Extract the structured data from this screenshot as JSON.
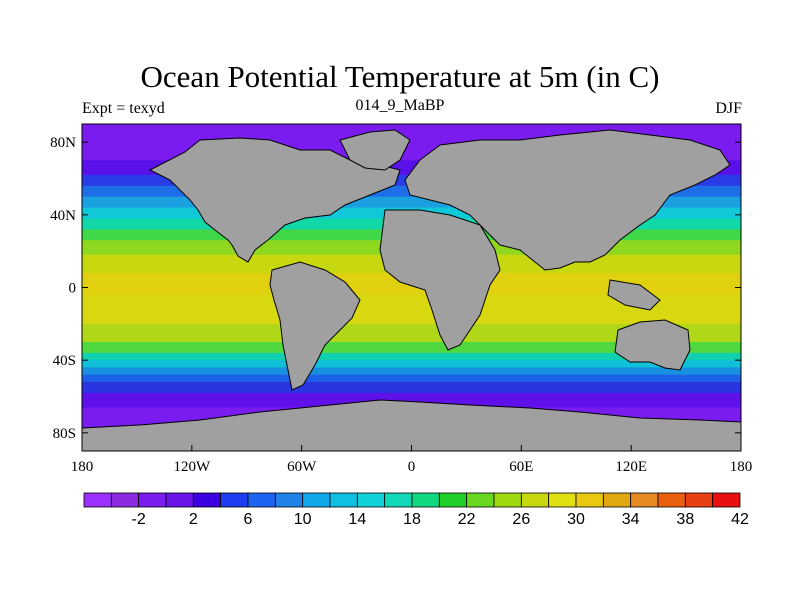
{
  "header": {
    "title": "Ocean Potential Temperature at 5m (in C)",
    "left": "Expt = texyd",
    "center": "014_9_MaBP",
    "right": "DJF"
  },
  "map": {
    "projection": "cylindrical-equidistant",
    "lon_range": [
      -180,
      180
    ],
    "lat_range": [
      -90,
      90
    ],
    "lat_ticks": [
      {
        "lat": 80,
        "label": "80N"
      },
      {
        "lat": 40,
        "label": "40N"
      },
      {
        "lat": 0,
        "label": "0"
      },
      {
        "lat": -40,
        "label": "40S"
      },
      {
        "lat": -80,
        "label": "80S"
      }
    ],
    "lon_ticks": [
      {
        "lon": -180,
        "label": "180"
      },
      {
        "lon": -120,
        "label": "120W"
      },
      {
        "lon": -60,
        "label": "60W"
      },
      {
        "lon": 0,
        "label": "0"
      },
      {
        "lon": 60,
        "label": "60E"
      },
      {
        "lon": 120,
        "label": "120E"
      },
      {
        "lon": 180,
        "label": "180"
      }
    ],
    "land_color": "#a0a0a0",
    "ocean_bands": [
      {
        "lat_to": 90,
        "color": "#7a1cf0"
      },
      {
        "lat_to": 70,
        "color": "#7a1cf0"
      },
      {
        "lat_to": 62,
        "color": "#5a10e8"
      },
      {
        "lat_to": 56,
        "color": "#2a3ce8"
      },
      {
        "lat_to": 50,
        "color": "#1e6ee8"
      },
      {
        "lat_to": 44,
        "color": "#1aa0e0"
      },
      {
        "lat_to": 38,
        "color": "#10c8d8"
      },
      {
        "lat_to": 32,
        "color": "#10d8a8"
      },
      {
        "lat_to": 26,
        "color": "#40d848"
      },
      {
        "lat_to": 18,
        "color": "#90d820"
      },
      {
        "lat_to": 8,
        "color": "#c8d810"
      },
      {
        "lat_to": -4,
        "color": "#e0d010"
      },
      {
        "lat_to": -20,
        "color": "#d8d810"
      },
      {
        "lat_to": -30,
        "color": "#b0d818"
      },
      {
        "lat_to": -36,
        "color": "#50d840"
      },
      {
        "lat_to": -40,
        "color": "#10d0b0"
      },
      {
        "lat_to": -44,
        "color": "#10c0d8"
      },
      {
        "lat_to": -48,
        "color": "#1890e0"
      },
      {
        "lat_to": -52,
        "color": "#1e60e8"
      },
      {
        "lat_to": -58,
        "color": "#2a34e0"
      },
      {
        "lat_to": -66,
        "color": "#6010e8"
      },
      {
        "lat_to": -90,
        "color": "#7a1cf0"
      }
    ]
  },
  "colorbar": {
    "colors": [
      "#9b30ff",
      "#8a2be2",
      "#7a1cf0",
      "#6a14e8",
      "#3a00e0",
      "#1e3cf0",
      "#1e64f0",
      "#1e82e8",
      "#10a8e8",
      "#10c0e0",
      "#10d0d8",
      "#10d8b8",
      "#10d880",
      "#20d028",
      "#68d820",
      "#a0d810",
      "#c8d810",
      "#e0e010",
      "#e8c810",
      "#e0a810",
      "#e88820",
      "#e86010",
      "#e84010",
      "#e81010"
    ],
    "labels": [
      "-2",
      "2",
      "6",
      "10",
      "14",
      "18",
      "22",
      "26",
      "30",
      "34",
      "38",
      "42"
    ]
  }
}
